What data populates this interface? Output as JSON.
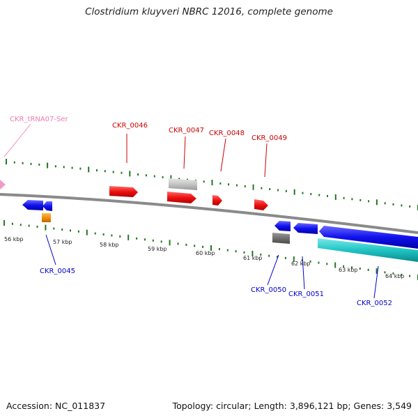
{
  "title": "Clostridium kluyveri NBRC 12016, complete genome",
  "footer": {
    "accession": "Accession: NC_011837",
    "summary": "Topology: circular; Length: 3,896,121 bp; Genes: 3,549"
  },
  "colors": {
    "forward_gene": "#ee1111",
    "reverse_gene": "#1111ee",
    "trna": "#f29bc2",
    "rrna_or_misc": "#f0900a",
    "pseudo_light": "#c4c4c4",
    "pseudo_dark": "#707070",
    "cyan_feature": "#20c4c4",
    "tick": "#227722",
    "backbone": "#8a8a8a"
  },
  "ticks": [
    "56 kbp",
    "57 kbp",
    "58 kbp",
    "59 kbp",
    "60 kbp",
    "61 kbp",
    "62 kbp",
    "63 kbp",
    "64 kbp"
  ],
  "labels": {
    "trna": "CKR_tRNA07-Ser",
    "g0045": "CKR_0045",
    "g0046": "CKR_0046",
    "g0047": "CKR_0047",
    "g0048": "CKR_0048",
    "g0049": "CKR_0049",
    "g0050": "CKR_0050",
    "g0051": "CKR_0051",
    "g0052": "CKR_0052"
  }
}
